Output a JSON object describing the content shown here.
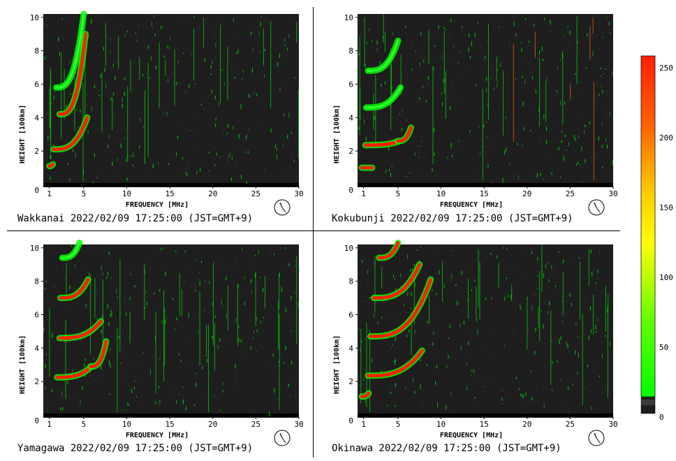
{
  "chart_data": [
    {
      "type": "heatmap",
      "station": "Wakkanai",
      "caption": "Wakkanai 2022/02/09 17:25:00 (JST=GMT+9)",
      "xlabel": "FREQUENCY [MHz]",
      "ylabel": "HEIGHT [100km]",
      "xlim": [
        0.3,
        30
      ],
      "ylim": [
        0,
        10.2
      ],
      "xticks": [
        "1",
        "5",
        "10",
        "15",
        "20",
        "25",
        "30"
      ],
      "yticks": [
        "0",
        "2",
        "4",
        "6",
        "8",
        "10"
      ],
      "traces": [
        {
          "freq_start": 1.0,
          "freq_end": 1.4,
          "height": 1.1,
          "rise": 0.1,
          "level": "red"
        },
        {
          "freq_start": 1.5,
          "freq_end": 5.4,
          "height": 2.1,
          "rise": 1.9,
          "level": "red"
        },
        {
          "freq_start": 2.2,
          "freq_end": 5.2,
          "height": 4.2,
          "rise": 4.8,
          "level": "red"
        },
        {
          "freq_start": 1.8,
          "freq_end": 5.0,
          "height": 5.8,
          "rise": 4.4,
          "level": "green"
        }
      ]
    },
    {
      "type": "heatmap",
      "station": "Kokubunji",
      "caption": "Kokubunji 2022/02/09 17:25:00 (JST=GMT+9)",
      "xlabel": "FREQUENCY [MHz]",
      "ylabel": "HEIGHT [100km]",
      "xlim": [
        0.3,
        30
      ],
      "ylim": [
        0,
        10.2
      ],
      "xticks": [
        "1",
        "5",
        "10",
        "15",
        "20",
        "25",
        "30"
      ],
      "yticks": [
        "0",
        "2",
        "4",
        "6",
        "8",
        "10"
      ],
      "traces": [
        {
          "freq_start": 0.8,
          "freq_end": 2.0,
          "height": 1.0,
          "rise": 0.0,
          "level": "red"
        },
        {
          "freq_start": 1.2,
          "freq_end": 5.0,
          "height": 2.35,
          "rise": 0.2,
          "level": "red"
        },
        {
          "freq_start": 5.0,
          "freq_end": 6.5,
          "height": 2.6,
          "rise": 0.8,
          "level": "red"
        },
        {
          "freq_start": 1.3,
          "freq_end": 5.3,
          "height": 4.6,
          "rise": 1.2,
          "level": "green"
        },
        {
          "freq_start": 1.5,
          "freq_end": 5.0,
          "height": 6.8,
          "rise": 1.8,
          "level": "green"
        }
      ]
    },
    {
      "type": "heatmap",
      "station": "Yamagawa",
      "caption": "Yamagawa 2022/02/09 17:25:00 (JST=GMT+9)",
      "xlabel": "FREQUENCY [MHz]",
      "ylabel": "HEIGHT [100km]",
      "xlim": [
        0.3,
        30
      ],
      "ylim": [
        0,
        10.2
      ],
      "xticks": [
        "1",
        "5",
        "10",
        "15",
        "20",
        "25",
        "30"
      ],
      "yticks": [
        "0",
        "2",
        "4",
        "6",
        "8",
        "10"
      ],
      "traces": [
        {
          "freq_start": 1.9,
          "freq_end": 5.8,
          "height": 2.25,
          "rise": 0.6,
          "level": "red"
        },
        {
          "freq_start": 5.8,
          "freq_end": 7.6,
          "height": 2.9,
          "rise": 1.5,
          "level": "red"
        },
        {
          "freq_start": 2.2,
          "freq_end": 7.0,
          "height": 4.6,
          "rise": 1.0,
          "level": "red"
        },
        {
          "freq_start": 2.3,
          "freq_end": 5.5,
          "height": 7.0,
          "rise": 1.1,
          "level": "red"
        },
        {
          "freq_start": 2.5,
          "freq_end": 4.5,
          "height": 9.4,
          "rise": 0.9,
          "level": "green"
        }
      ]
    },
    {
      "type": "heatmap",
      "station": "Okinawa",
      "caption": "Okinawa 2022/02/09 17:25:00 (JST=GMT+9)",
      "xlabel": "FREQUENCY [MHz]",
      "ylabel": "HEIGHT [100km]",
      "xlim": [
        0.3,
        30
      ],
      "ylim": [
        0,
        10.2
      ],
      "xticks": [
        "1",
        "5",
        "10",
        "15",
        "20",
        "25",
        "30"
      ],
      "yticks": [
        "0",
        "2",
        "4",
        "6",
        "8",
        "10"
      ],
      "traces": [
        {
          "freq_start": 0.8,
          "freq_end": 1.6,
          "height": 1.1,
          "rise": 0.2,
          "level": "red"
        },
        {
          "freq_start": 1.5,
          "freq_end": 7.8,
          "height": 2.35,
          "rise": 1.5,
          "level": "red"
        },
        {
          "freq_start": 1.8,
          "freq_end": 8.8,
          "height": 4.7,
          "rise": 3.4,
          "level": "red"
        },
        {
          "freq_start": 2.2,
          "freq_end": 7.5,
          "height": 7.0,
          "rise": 2.0,
          "level": "red"
        },
        {
          "freq_start": 2.8,
          "freq_end": 5.0,
          "height": 9.4,
          "rise": 0.9,
          "level": "red"
        }
      ]
    }
  ],
  "colorbar": {
    "ticks": [
      "250",
      "200",
      "150",
      "100",
      "50",
      "0"
    ],
    "range": [
      0,
      255
    ],
    "colors": {
      "high": "#ff2000",
      "mid_high": "#ff9900",
      "mid": "#ffff00",
      "low": "#00ff00",
      "background": "#1e1e1e"
    }
  }
}
